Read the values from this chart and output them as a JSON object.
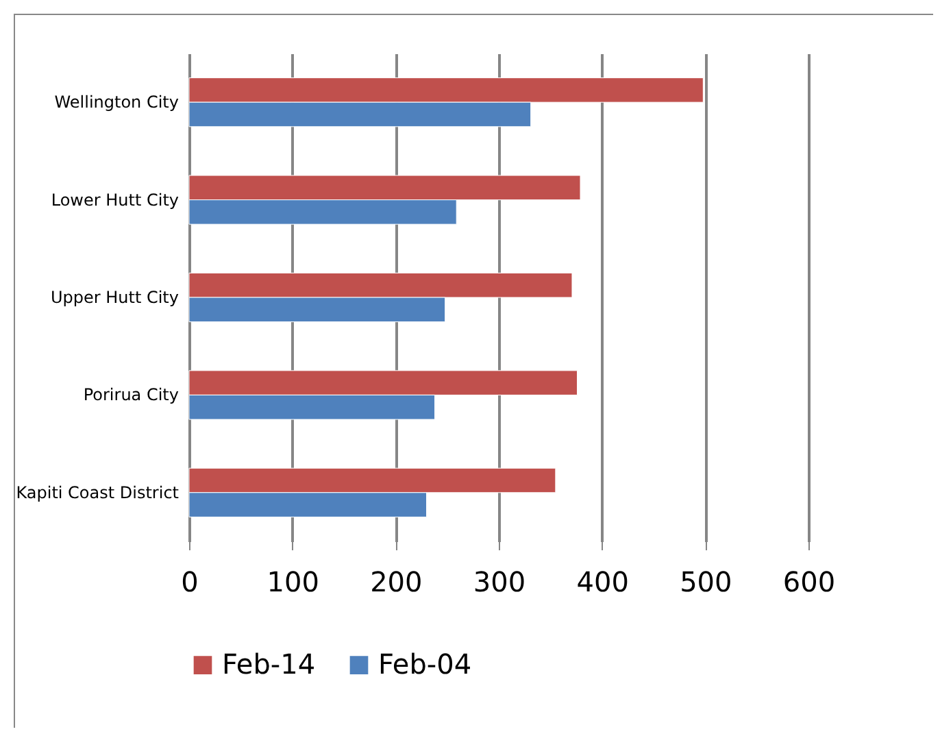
{
  "chart_data": {
    "type": "bar",
    "orientation": "horizontal",
    "categories": [
      "Wellington City",
      "Lower Hutt City",
      "Upper Hutt City",
      "Porirua City",
      "Kapiti Coast District"
    ],
    "series": [
      {
        "name": "Feb-14",
        "color": "#c0504d",
        "values": [
          498,
          379,
          371,
          376,
          355
        ]
      },
      {
        "name": "Feb-04",
        "color": "#4f81bd",
        "values": [
          331,
          259,
          248,
          238,
          230
        ]
      }
    ],
    "xlim": [
      0,
      600
    ],
    "xticks": [
      0,
      100,
      200,
      300,
      400,
      500,
      600
    ],
    "grid": "x",
    "legend": "bottom"
  }
}
